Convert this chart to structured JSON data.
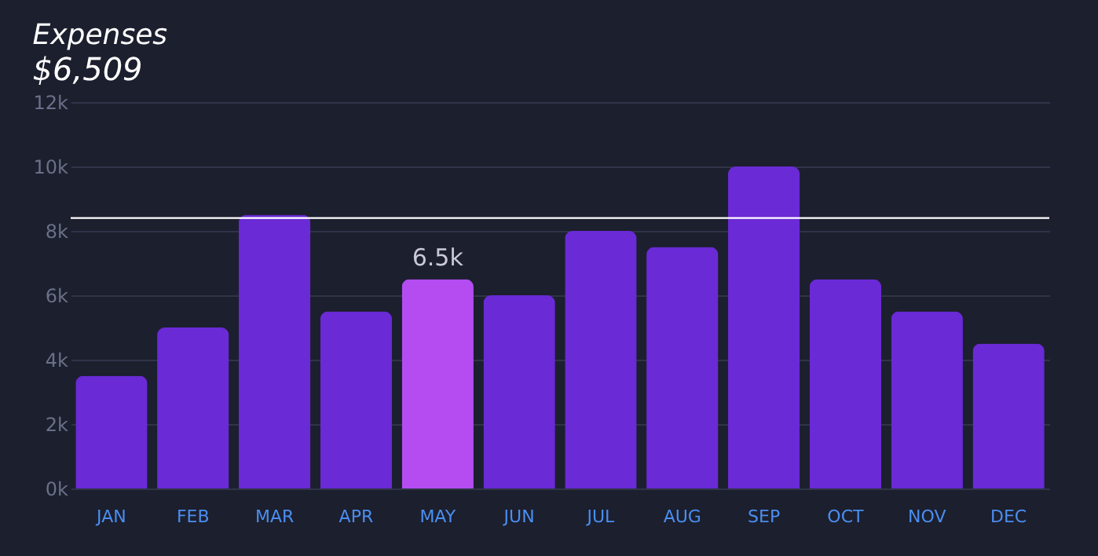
{
  "chart_data": {
    "type": "bar",
    "title": "Expenses",
    "subtitle": "$6,509",
    "categories": [
      "JAN",
      "FEB",
      "MAR",
      "APR",
      "MAY",
      "JUN",
      "JUL",
      "AUG",
      "SEP",
      "OCT",
      "NOV",
      "DEC"
    ],
    "values": [
      3.5,
      5,
      8.5,
      5.5,
      6.5,
      6,
      8,
      7.5,
      10,
      6.5,
      5.5,
      4.5
    ],
    "colors": [
      "#6a2ad6",
      "#6a2ad6",
      "#6a2ad6",
      "#6a2ad6",
      "#b44cf2",
      "#6a2ad6",
      "#6a2ad6",
      "#6a2ad6",
      "#6a2ad6",
      "#6a2ad6",
      "#6a2ad6",
      "#6a2ad6"
    ],
    "value_labels": [
      null,
      null,
      null,
      null,
      "6.5k",
      null,
      null,
      null,
      null,
      null,
      null,
      null
    ],
    "ylim": [
      0,
      12
    ],
    "yticks": [
      {
        "value": 0,
        "label": "0k"
      },
      {
        "value": 2,
        "label": "2k"
      },
      {
        "value": 4,
        "label": "4k"
      },
      {
        "value": 6,
        "label": "6k"
      },
      {
        "value": 8,
        "label": "8k"
      },
      {
        "value": 10,
        "label": "10k"
      },
      {
        "value": 12,
        "label": "12k"
      }
    ],
    "ref_lines": [
      {
        "axis": "y",
        "value": 8.4,
        "color": "#ffffff"
      }
    ],
    "grid": "y"
  }
}
